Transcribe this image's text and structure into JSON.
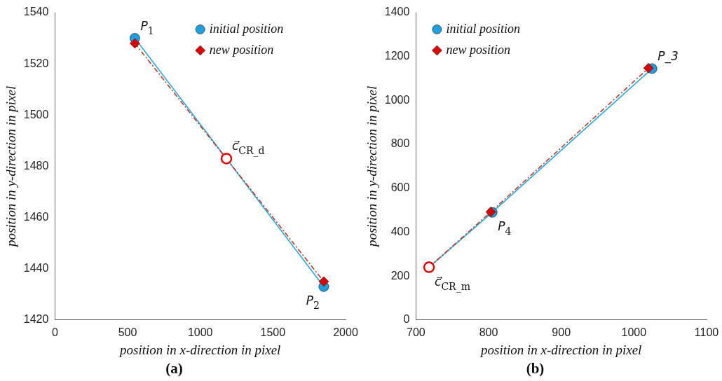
{
  "chart_data": [
    {
      "type": "scatter",
      "title": "(a)",
      "xlabel": "position in x-direction in pixel",
      "ylabel": "position in y-direction in pixel",
      "xlim": [
        0,
        2000
      ],
      "xticks": [
        0,
        500,
        1000,
        1500,
        2000
      ],
      "ylim": [
        1420,
        1540
      ],
      "yticks": [
        1420,
        1440,
        1460,
        1480,
        1500,
        1520,
        1540
      ],
      "legend": "top right",
      "series": [
        {
          "type": "line",
          "color": "#29abe2",
          "marker": "none",
          "line_style": "solid",
          "x": [
            550,
            1850
          ],
          "values": [
            1530,
            1433
          ]
        },
        {
          "type": "line",
          "color": "#c0392b",
          "marker": "none",
          "line_style": "dashed",
          "x": [
            550,
            1850
          ],
          "values": [
            1528,
            1435
          ]
        },
        {
          "name": "initial position",
          "color": "#1ba1e2",
          "marker": "circle",
          "x": [
            550,
            1850
          ],
          "values": [
            1530,
            1433
          ]
        },
        {
          "name": "new position",
          "color": "#e00000",
          "marker": "diamond",
          "x": [
            550,
            1850
          ],
          "values": [
            1528,
            1435
          ]
        },
        {
          "color": "#e00000",
          "marker": "circle",
          "x": [
            1180
          ],
          "values": [
            1483
          ]
        }
      ],
      "annotations": [
        {
          "text": "P$_{1}$",
          "x": 550,
          "y": 1530
        },
        {
          "text": "P$_{2}$",
          "x": 1850,
          "y": 1433
        },
        {
          "text": "c⃗$_{CR_d}$",
          "x": 1180,
          "y": 1483
        }
      ]
    },
    {
      "type": "scatter",
      "title": "(b)",
      "xlabel": "position in x-direction in pixel",
      "ylabel": "position in y-direction in pixel",
      "xlim": [
        700,
        1100
      ],
      "xticks": [
        700,
        800,
        900,
        1000,
        1100
      ],
      "ylim": [
        0,
        1400
      ],
      "yticks": [
        0,
        200,
        400,
        600,
        800,
        1000,
        1200,
        1400
      ],
      "legend": "top left",
      "series": [
        {
          "type": "line",
          "color": "#29abe2",
          "marker": "none",
          "line_style": "solid",
          "x": [
            718,
            805,
            1025
          ],
          "values": [
            240,
            490,
            1145
          ]
        },
        {
          "type": "line",
          "color": "#c0392b",
          "marker": "none",
          "line_style": "dashed",
          "x": [
            718,
            803,
            1020
          ],
          "values": [
            240,
            492,
            1147
          ]
        },
        {
          "name": "initial position",
          "color": "#1ba1e2",
          "marker": "circle",
          "x": [
            805,
            1025
          ],
          "values": [
            490,
            1145
          ]
        },
        {
          "name": "new position",
          "color": "#e00000",
          "marker": "diamond",
          "x": [
            803,
            1020
          ],
          "values": [
            492,
            1147
          ]
        },
        {
          "color": "#e00000",
          "marker": "circle",
          "x": [
            718
          ],
          "values": [
            240
          ]
        }
      ],
      "annotations": [
        {
          "text": "P_3",
          "x": 1025,
          "y": 1145
        },
        {
          "text": "P$_{4}$",
          "x": 805,
          "y": 490
        },
        {
          "text": "c⃗$_{CR_m}$",
          "x": 718,
          "y": 240
        }
      ]
    }
  ]
}
